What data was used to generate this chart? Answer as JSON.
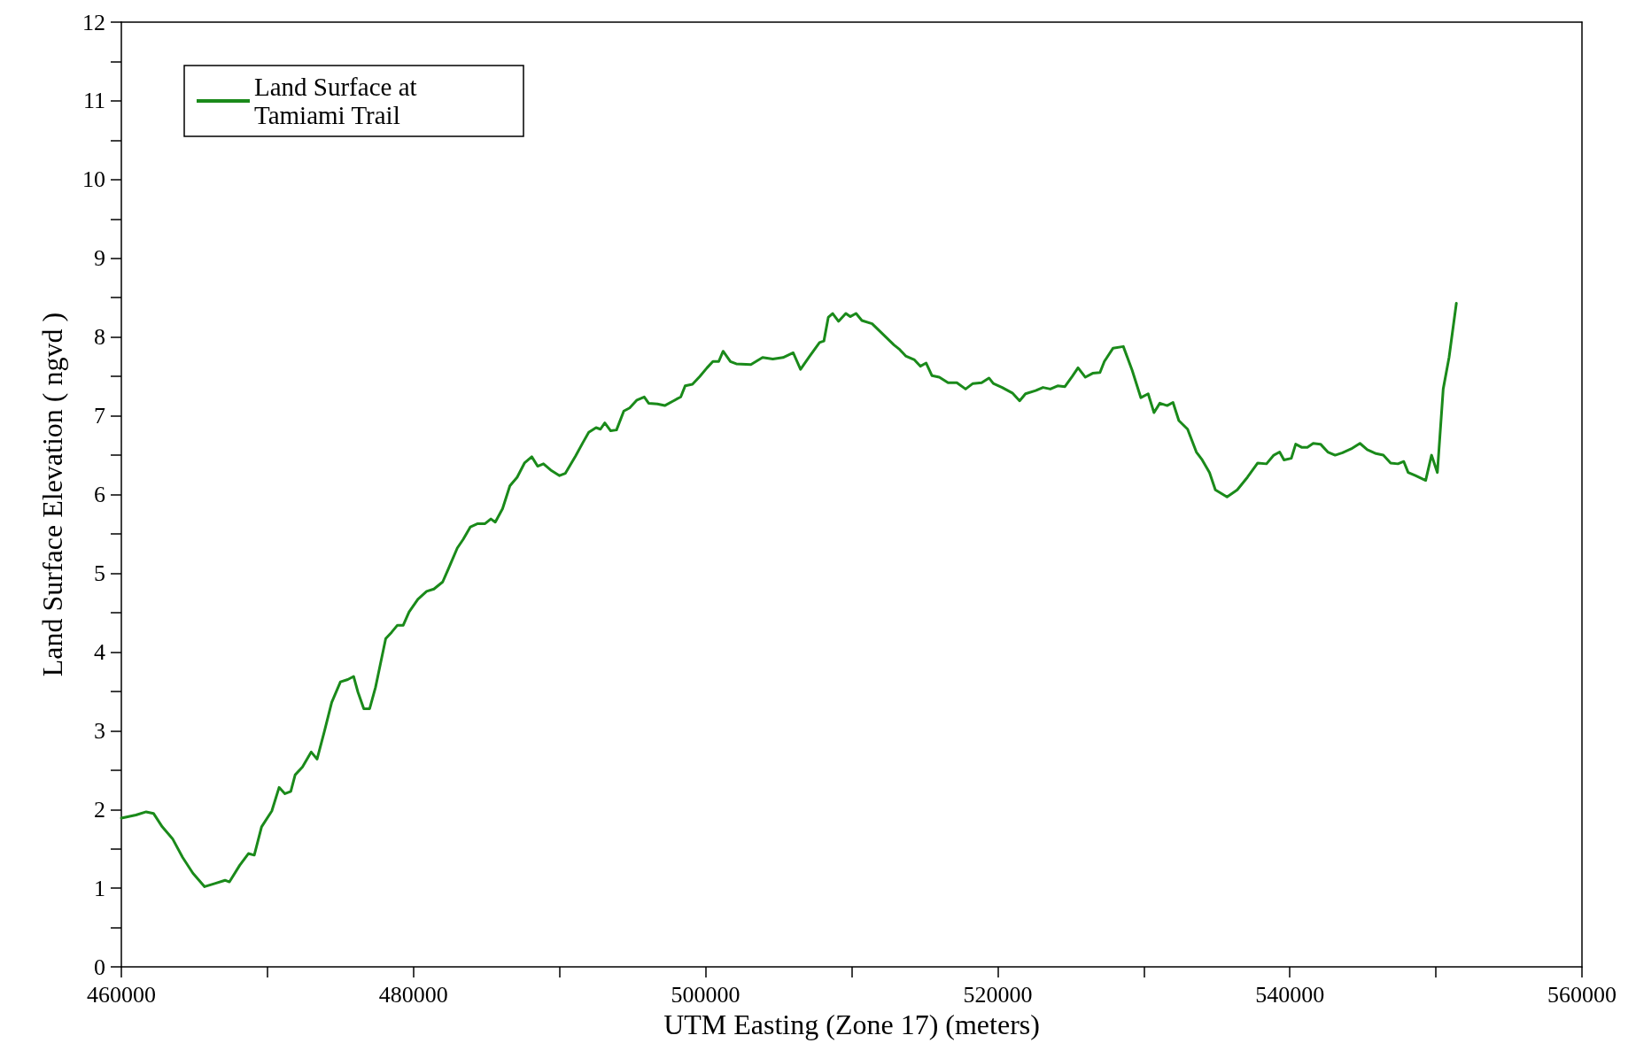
{
  "chart_data": {
    "type": "line",
    "xlabel": "UTM Easting (Zone 17) (meters)",
    "ylabel": "Land Surface Elevation ( ngvd )",
    "x": [
      460000,
      461000,
      461700,
      462200,
      462800,
      463500,
      464200,
      464900,
      465700,
      466400,
      467100,
      467400,
      468100,
      468700,
      469100,
      469600,
      470300,
      470800,
      471200,
      471600,
      471900,
      472400,
      473000,
      473400,
      473900,
      474400,
      475000,
      475500,
      475900,
      476200,
      476600,
      477000,
      477400,
      478100,
      478500,
      478900,
      479300,
      479700,
      480300,
      480900,
      481400,
      482000,
      482400,
      483000,
      483400,
      483900,
      484400,
      484900,
      485300,
      485600,
      486100,
      486600,
      487100,
      487600,
      488100,
      488500,
      488900,
      489400,
      490000,
      490400,
      491100,
      491600,
      492000,
      492500,
      492800,
      493100,
      493500,
      493900,
      494400,
      494800,
      495300,
      495800,
      496100,
      496700,
      497200,
      497800,
      498300,
      498600,
      499100,
      499600,
      500100,
      500500,
      500900,
      501200,
      501700,
      502100,
      503100,
      503900,
      504600,
      505300,
      506000,
      506500,
      507100,
      507800,
      508100,
      508400,
      508700,
      509100,
      509600,
      509900,
      510300,
      510700,
      511400,
      511900,
      512400,
      512900,
      513300,
      513700,
      514300,
      514700,
      515100,
      515500,
      516000,
      516600,
      517200,
      517800,
      518300,
      518900,
      519400,
      519700,
      520300,
      521000,
      521500,
      521900,
      522600,
      523100,
      523600,
      524100,
      524600,
      525100,
      525500,
      526000,
      526500,
      527000,
      527300,
      527900,
      528600,
      529200,
      529800,
      530300,
      530700,
      531100,
      531600,
      532000,
      532400,
      533000,
      533600,
      534000,
      534500,
      534900,
      535700,
      536400,
      537100,
      537800,
      538400,
      538900,
      539300,
      539600,
      540100,
      540400,
      540800,
      541200,
      541600,
      542100,
      542600,
      543100,
      543600,
      544200,
      544800,
      545300,
      545900,
      546400,
      546900,
      547400,
      547800,
      548100,
      548600,
      549300,
      549700,
      550100,
      550500,
      550900,
      551400
    ],
    "series": [
      {
        "name": "Land Surface at Tamiami Trail",
        "color": "#1a8a1a",
        "values": [
          1.89,
          1.93,
          1.97,
          1.95,
          1.78,
          1.63,
          1.39,
          1.19,
          1.02,
          1.06,
          1.1,
          1.08,
          1.29,
          1.44,
          1.42,
          1.78,
          1.98,
          2.28,
          2.2,
          2.23,
          2.44,
          2.54,
          2.73,
          2.64,
          2.99,
          3.36,
          3.62,
          3.65,
          3.69,
          3.49,
          3.28,
          3.28,
          3.55,
          4.17,
          4.25,
          4.34,
          4.34,
          4.51,
          4.67,
          4.77,
          4.8,
          4.89,
          5.06,
          5.32,
          5.43,
          5.59,
          5.63,
          5.63,
          5.69,
          5.65,
          5.82,
          6.11,
          6.22,
          6.4,
          6.48,
          6.36,
          6.39,
          6.31,
          6.24,
          6.27,
          6.49,
          6.66,
          6.79,
          6.85,
          6.83,
          6.91,
          6.81,
          6.82,
          7.06,
          7.1,
          7.2,
          7.24,
          7.16,
          7.15,
          7.13,
          7.19,
          7.24,
          7.38,
          7.4,
          7.5,
          7.61,
          7.69,
          7.69,
          7.82,
          7.69,
          7.66,
          7.65,
          7.74,
          7.72,
          7.74,
          7.8,
          7.59,
          7.75,
          7.93,
          7.95,
          8.25,
          8.3,
          8.2,
          8.3,
          8.26,
          8.3,
          8.21,
          8.17,
          8.08,
          7.99,
          7.9,
          7.84,
          7.76,
          7.71,
          7.63,
          7.67,
          7.51,
          7.49,
          7.42,
          7.42,
          7.34,
          7.41,
          7.42,
          7.48,
          7.41,
          7.36,
          7.29,
          7.19,
          7.28,
          7.32,
          7.36,
          7.34,
          7.38,
          7.37,
          7.5,
          7.61,
          7.49,
          7.54,
          7.55,
          7.69,
          7.86,
          7.88,
          7.58,
          7.23,
          7.28,
          7.04,
          7.16,
          7.13,
          7.17,
          6.94,
          6.83,
          6.54,
          6.44,
          6.28,
          6.06,
          5.97,
          6.06,
          6.22,
          6.4,
          6.39,
          6.5,
          6.54,
          6.44,
          6.46,
          6.64,
          6.6,
          6.6,
          6.65,
          6.64,
          6.54,
          6.5,
          6.53,
          6.58,
          6.65,
          6.57,
          6.52,
          6.5,
          6.4,
          6.39,
          6.42,
          6.28,
          6.24,
          6.18,
          6.5,
          6.28,
          7.34,
          7.74,
          8.43
        ]
      }
    ],
    "xlim": [
      460000,
      560000
    ],
    "xticks": [
      460000,
      {
        "value": 470000,
        "label": null
      },
      480000,
      {
        "value": 490000,
        "label": null
      },
      500000,
      {
        "value": 510000,
        "label": null
      },
      520000,
      {
        "value": 530000,
        "label": null
      },
      540000,
      {
        "value": 550000,
        "label": null
      },
      560000
    ],
    "ylim": [
      0,
      12
    ],
    "yticks": [
      0,
      {
        "value": 0.5,
        "label": null
      },
      1,
      {
        "value": 1.5,
        "label": null
      },
      2,
      {
        "value": 2.5,
        "label": null
      },
      3,
      {
        "value": 3.5,
        "label": null
      },
      4,
      {
        "value": 4.5,
        "label": null
      },
      5,
      {
        "value": 5.5,
        "label": null
      },
      6,
      {
        "value": 6.5,
        "label": null
      },
      7,
      {
        "value": 7.5,
        "label": null
      },
      8,
      {
        "value": 8.5,
        "label": null
      },
      9,
      {
        "value": 9.5,
        "label": null
      },
      10,
      {
        "value": 10.5,
        "label": null
      },
      11,
      {
        "value": 11.5,
        "label": null
      },
      12
    ],
    "grid": false,
    "legend": "top left",
    "marker": "none",
    "line_style": "solid"
  }
}
